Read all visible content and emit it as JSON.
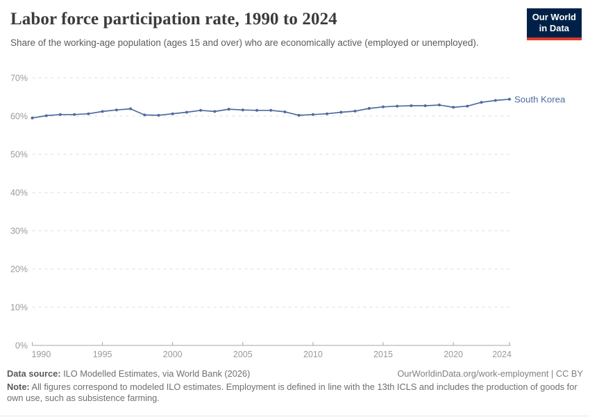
{
  "header": {
    "title": "Labor force participation rate, 1990 to 2024",
    "subtitle": "Share of the working-age population (ages 15 and over) who are economically active (employed or unemployed).",
    "logo_line1": "Our World",
    "logo_line2": "in Data"
  },
  "chart_data": {
    "type": "line",
    "title": "Labor force participation rate, 1990 to 2024",
    "xlabel": "",
    "ylabel": "",
    "x": [
      1990,
      1991,
      1992,
      1993,
      1994,
      1995,
      1996,
      1997,
      1998,
      1999,
      2000,
      2001,
      2002,
      2003,
      2004,
      2005,
      2006,
      2007,
      2008,
      2009,
      2010,
      2011,
      2012,
      2013,
      2014,
      2015,
      2016,
      2017,
      2018,
      2019,
      2020,
      2021,
      2022,
      2023,
      2024
    ],
    "series": [
      {
        "name": "South Korea",
        "color": "#4d6b9e",
        "values": [
          59.5,
          60.1,
          60.4,
          60.4,
          60.6,
          61.2,
          61.6,
          61.9,
          60.3,
          60.2,
          60.6,
          61.0,
          61.5,
          61.2,
          61.8,
          61.6,
          61.5,
          61.5,
          61.1,
          60.2,
          60.4,
          60.6,
          61.0,
          61.3,
          62.0,
          62.4,
          62.6,
          62.7,
          62.7,
          62.9,
          62.3,
          62.6,
          63.6,
          64.1,
          64.4
        ]
      }
    ],
    "ylim": [
      0,
      70
    ],
    "yticks": [
      0,
      10,
      20,
      30,
      40,
      50,
      60,
      70
    ],
    "ytick_suffix": "%",
    "xticks": [
      1990,
      1995,
      2000,
      2005,
      2010,
      2015,
      2020,
      2024
    ],
    "grid": "horizontal-dashed",
    "legend_position": "end-of-line-label",
    "end_label": "South Korea"
  },
  "footer": {
    "source_label": "Data source:",
    "source_text": " ILO Modelled Estimates, via World Bank (2026)",
    "link_text": "OurWorldinData.org/work-employment | CC BY",
    "note_label": "Note:",
    "note_text": " All figures correspond to modeled ILO estimates. Employment is defined in line with the 13th ICLS and includes the production of goods for own use, such as subsistence farming."
  },
  "colors": {
    "line": "#4d6b9e",
    "end_label": "#4d6b9e",
    "gridline": "#dcdcdc",
    "axis": "#a6a6a6",
    "tick_label": "#9a9a9a",
    "logo_bg": "#002147",
    "logo_red": "#dc3a2d"
  }
}
